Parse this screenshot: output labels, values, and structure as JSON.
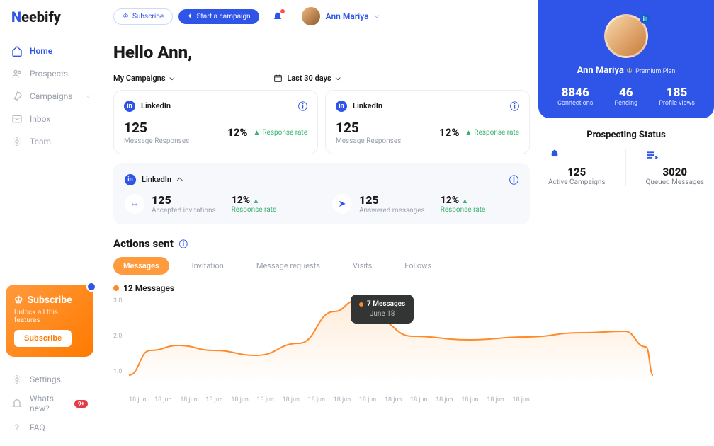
{
  "brand": {
    "part1": "N",
    "part2": "eebify"
  },
  "topbar": {
    "subscribe": "Subscribe",
    "campaign": "Start a campaign",
    "user_name": "Ann Mariya"
  },
  "sidebar": {
    "items": [
      {
        "label": "Home",
        "icon": "home"
      },
      {
        "label": "Prospects",
        "icon": "users"
      },
      {
        "label": "Campaigns",
        "icon": "rocket",
        "expandable": true
      },
      {
        "label": "Inbox",
        "icon": "inbox"
      },
      {
        "label": "Team",
        "icon": "team"
      }
    ],
    "subscribe_card": {
      "title": "Subscribe",
      "subtitle": "Unlock all this features",
      "button": "Subscribe"
    },
    "bottom": [
      {
        "label": "Settings",
        "icon": "gear"
      },
      {
        "label": "Whats new?",
        "icon": "bell",
        "badge": "9+"
      },
      {
        "label": "FAQ",
        "icon": "question"
      }
    ]
  },
  "greeting": "Hello Ann,",
  "filters": {
    "campaigns": "My Campaigns",
    "period": "Last 30 days"
  },
  "cards": [
    {
      "platform": "LinkedIn",
      "value": "125",
      "label": "Message Responses",
      "pct": "12%",
      "trend": "Response rate"
    },
    {
      "platform": "LinkedIn",
      "value": "125",
      "label": "Message Responses",
      "pct": "12%",
      "trend": "Response rate"
    }
  ],
  "wide": {
    "platform": "LinkedIn",
    "metrics": [
      {
        "value": "125",
        "label": "Accepted invitations",
        "pct": "12%",
        "rr": "Response rate",
        "icon": "link"
      },
      {
        "value": "125",
        "label": "Answered messages",
        "pct": "12%",
        "rr": "Response rate",
        "icon": "send"
      }
    ]
  },
  "actions": {
    "title": "Actions sent",
    "tabs": [
      "Messages",
      "Invitation",
      "Message requests",
      "Visits",
      "Follows"
    ],
    "chart_label": "12 Messages",
    "tooltip": {
      "value": "7 Messages",
      "date": "June 18"
    },
    "chart": {
      "type": "area",
      "line_color": "#ff8a2a",
      "fill_start": "#ffd9b3",
      "fill_end": "#ffffff",
      "line_width": 2,
      "y_ticks": [
        "3.0",
        "2.0",
        "1.0"
      ],
      "x_ticks": [
        "18 jun",
        "18 jun",
        "18 jun",
        "18 jun",
        "18 jun",
        "18 jun",
        "18 jun",
        "18 jun",
        "18 jun",
        "18 jun",
        "18 jun",
        "18 jun",
        "18 jun",
        "18 jun",
        "18 jun",
        "18 jun"
      ],
      "points": [
        {
          "x": 0,
          "y": 110
        },
        {
          "x": 30,
          "y": 75
        },
        {
          "x": 70,
          "y": 68
        },
        {
          "x": 120,
          "y": 75
        },
        {
          "x": 180,
          "y": 82
        },
        {
          "x": 240,
          "y": 65
        },
        {
          "x": 290,
          "y": 20
        },
        {
          "x": 320,
          "y": 5
        },
        {
          "x": 350,
          "y": 32
        },
        {
          "x": 400,
          "y": 55
        },
        {
          "x": 480,
          "y": 60
        },
        {
          "x": 560,
          "y": 56
        },
        {
          "x": 640,
          "y": 50
        },
        {
          "x": 700,
          "y": 48
        },
        {
          "x": 730,
          "y": 70
        },
        {
          "x": 740,
          "y": 110
        }
      ]
    }
  },
  "profile": {
    "name": "Ann Mariya",
    "plan": "Premium Plan",
    "stats": [
      {
        "value": "8846",
        "label": "Connections"
      },
      {
        "value": "46",
        "label": "Pending"
      },
      {
        "value": "185",
        "label": "Profile views"
      }
    ]
  },
  "prospecting": {
    "title": "Prospecting Status",
    "items": [
      {
        "value": "125",
        "label": "Active Campaigns",
        "icon": "rocket"
      },
      {
        "value": "3020",
        "label": "Queued Messages",
        "icon": "queue"
      }
    ]
  }
}
